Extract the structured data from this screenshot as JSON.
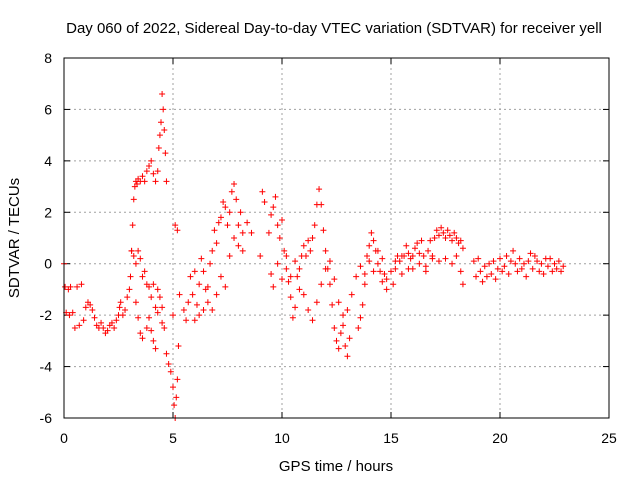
{
  "chart_data": {
    "type": "scatter",
    "title": "Day 060 of 2022, Sidereal Day-to-day VTEC variation (SDTVAR) for receiver yell",
    "xlabel": "GPS time / hours",
    "ylabel": "SDTVAR / TECUs",
    "xlim": [
      0,
      25
    ],
    "ylim": [
      -6,
      8
    ],
    "xticks": [
      0,
      5,
      10,
      15,
      20,
      25
    ],
    "yticks": [
      -6,
      -4,
      -2,
      0,
      2,
      4,
      6,
      8
    ],
    "grid": true,
    "marker": "+",
    "series": [
      {
        "name": "SDTVAR",
        "color": "#ff0000",
        "points": [
          [
            0.0,
            0.0
          ],
          [
            0.05,
            -0.9
          ],
          [
            0.1,
            -1.9
          ],
          [
            0.2,
            -1.0
          ],
          [
            0.25,
            -2.0
          ],
          [
            0.3,
            -0.9
          ],
          [
            0.4,
            -1.9
          ],
          [
            0.5,
            -2.5
          ],
          [
            0.6,
            -0.9
          ],
          [
            0.7,
            -2.4
          ],
          [
            0.8,
            -0.8
          ],
          [
            0.9,
            -2.2
          ],
          [
            1.0,
            -1.7
          ],
          [
            1.1,
            -1.5
          ],
          [
            1.2,
            -1.6
          ],
          [
            1.3,
            -1.8
          ],
          [
            1.4,
            -2.1
          ],
          [
            1.5,
            -2.4
          ],
          [
            1.6,
            -2.5
          ],
          [
            1.7,
            -2.3
          ],
          [
            1.8,
            -2.5
          ],
          [
            1.9,
            -2.7
          ],
          [
            2.0,
            -2.6
          ],
          [
            2.1,
            -2.4
          ],
          [
            2.2,
            -2.3
          ],
          [
            2.3,
            -2.5
          ],
          [
            2.4,
            -2.2
          ],
          [
            2.5,
            -2.0
          ],
          [
            2.55,
            -1.7
          ],
          [
            2.6,
            -1.5
          ],
          [
            2.7,
            -2.0
          ],
          [
            2.8,
            -1.8
          ],
          [
            2.9,
            -1.3
          ],
          [
            3.0,
            -1.0
          ],
          [
            3.05,
            -0.5
          ],
          [
            3.1,
            0.5
          ],
          [
            3.15,
            1.5
          ],
          [
            3.2,
            2.5
          ],
          [
            3.25,
            3.0
          ],
          [
            3.3,
            3.2
          ],
          [
            3.35,
            3.1
          ],
          [
            3.4,
            3.3
          ],
          [
            3.5,
            3.2
          ],
          [
            3.6,
            3.4
          ],
          [
            3.7,
            3.2
          ],
          [
            3.8,
            3.6
          ],
          [
            3.9,
            3.8
          ],
          [
            4.0,
            4.0
          ],
          [
            4.1,
            3.5
          ],
          [
            4.2,
            3.2
          ],
          [
            4.3,
            3.6
          ],
          [
            4.35,
            4.5
          ],
          [
            4.4,
            5.0
          ],
          [
            4.45,
            5.5
          ],
          [
            4.5,
            6.6
          ],
          [
            4.55,
            6.0
          ],
          [
            4.6,
            5.2
          ],
          [
            4.65,
            4.3
          ],
          [
            4.7,
            3.2
          ],
          [
            3.1,
            0.5
          ],
          [
            3.2,
            0.3
          ],
          [
            3.3,
            0.0
          ],
          [
            3.4,
            0.5
          ],
          [
            3.5,
            0.2
          ],
          [
            3.6,
            -0.5
          ],
          [
            3.7,
            -0.3
          ],
          [
            3.8,
            -0.8
          ],
          [
            3.9,
            -0.9
          ],
          [
            4.0,
            -1.3
          ],
          [
            4.1,
            -0.8
          ],
          [
            4.2,
            -1.7
          ],
          [
            4.3,
            -1.9
          ],
          [
            4.4,
            -1.3
          ],
          [
            4.5,
            -2.3
          ],
          [
            4.6,
            -2.5
          ],
          [
            4.7,
            -3.5
          ],
          [
            4.8,
            -3.9
          ],
          [
            4.9,
            -4.2
          ],
          [
            5.0,
            -4.8
          ],
          [
            5.05,
            -5.5
          ],
          [
            5.1,
            -6.0
          ],
          [
            5.15,
            -5.2
          ],
          [
            5.2,
            -4.5
          ],
          [
            5.25,
            -3.2
          ],
          [
            5.3,
            -1.2
          ],
          [
            5.2,
            1.3
          ],
          [
            5.1,
            1.5
          ],
          [
            3.3,
            -1.5
          ],
          [
            3.4,
            -2.1
          ],
          [
            3.5,
            -2.7
          ],
          [
            3.6,
            -2.9
          ],
          [
            3.8,
            -2.5
          ],
          [
            3.9,
            -2.1
          ],
          [
            4.0,
            -2.6
          ],
          [
            4.1,
            -3.0
          ],
          [
            4.2,
            -3.3
          ],
          [
            4.3,
            -1.0
          ],
          [
            4.5,
            -1.7
          ],
          [
            5.0,
            -2.0
          ],
          [
            5.5,
            -1.8
          ],
          [
            5.6,
            -2.2
          ],
          [
            5.7,
            -1.5
          ],
          [
            5.8,
            -0.5
          ],
          [
            5.9,
            -1.2
          ],
          [
            6.0,
            -0.3
          ],
          [
            6.1,
            -1.6
          ],
          [
            6.2,
            -0.8
          ],
          [
            6.3,
            0.2
          ],
          [
            6.4,
            -0.3
          ],
          [
            6.5,
            -1.0
          ],
          [
            6.6,
            -0.9
          ],
          [
            6.7,
            0.0
          ],
          [
            6.8,
            0.5
          ],
          [
            6.9,
            1.3
          ],
          [
            7.0,
            0.8
          ],
          [
            7.1,
            1.6
          ],
          [
            7.2,
            1.8
          ],
          [
            7.3,
            2.4
          ],
          [
            7.4,
            2.2
          ],
          [
            7.5,
            1.5
          ],
          [
            7.6,
            2.0
          ],
          [
            7.7,
            2.8
          ],
          [
            7.8,
            3.1
          ],
          [
            7.9,
            2.5
          ],
          [
            8.0,
            1.5
          ],
          [
            8.1,
            2.0
          ],
          [
            8.2,
            1.2
          ],
          [
            6.0,
            -2.2
          ],
          [
            6.2,
            -2.0
          ],
          [
            6.4,
            -1.8
          ],
          [
            6.6,
            -1.5
          ],
          [
            6.8,
            -1.8
          ],
          [
            7.0,
            -1.2
          ],
          [
            7.2,
            -0.5
          ],
          [
            7.4,
            -0.9
          ],
          [
            7.6,
            0.3
          ],
          [
            7.8,
            1.0
          ],
          [
            8.0,
            0.7
          ],
          [
            8.2,
            0.5
          ],
          [
            8.4,
            1.6
          ],
          [
            8.6,
            1.2
          ],
          [
            9.0,
            0.3
          ],
          [
            9.1,
            2.8
          ],
          [
            9.2,
            2.4
          ],
          [
            9.4,
            1.2
          ],
          [
            9.5,
            1.9
          ],
          [
            9.6,
            2.2
          ],
          [
            9.7,
            2.6
          ],
          [
            9.8,
            1.5
          ],
          [
            9.9,
            1.0
          ],
          [
            10.0,
            1.7
          ],
          [
            10.1,
            0.5
          ],
          [
            10.2,
            -0.2
          ],
          [
            10.3,
            -0.7
          ],
          [
            10.4,
            -1.3
          ],
          [
            10.5,
            -2.1
          ],
          [
            10.6,
            -1.7
          ],
          [
            10.7,
            -0.5
          ],
          [
            10.8,
            -0.2
          ],
          [
            10.9,
            0.3
          ],
          [
            11.0,
            0.7
          ],
          [
            11.1,
            0.3
          ],
          [
            11.2,
            0.9
          ],
          [
            11.3,
            0.5
          ],
          [
            11.4,
            1.0
          ],
          [
            11.5,
            1.5
          ],
          [
            11.6,
            2.3
          ],
          [
            11.7,
            2.9
          ],
          [
            11.8,
            2.3
          ],
          [
            11.9,
            1.3
          ],
          [
            12.0,
            0.5
          ],
          [
            12.1,
            -0.2
          ],
          [
            12.2,
            -0.8
          ],
          [
            12.3,
            -1.6
          ],
          [
            12.4,
            -2.5
          ],
          [
            12.5,
            -3.0
          ],
          [
            12.6,
            -3.3
          ],
          [
            12.7,
            -2.7
          ],
          [
            12.8,
            -2.4
          ],
          [
            12.9,
            -3.2
          ],
          [
            13.0,
            -3.6
          ],
          [
            13.1,
            -2.9
          ],
          [
            9.5,
            -0.4
          ],
          [
            9.6,
            -0.9
          ],
          [
            9.8,
            0.0
          ],
          [
            10.0,
            -0.6
          ],
          [
            10.2,
            0.3
          ],
          [
            10.4,
            -0.5
          ],
          [
            10.6,
            0.1
          ],
          [
            10.8,
            -1.0
          ],
          [
            11.0,
            -1.2
          ],
          [
            11.2,
            -1.8
          ],
          [
            11.4,
            -2.2
          ],
          [
            11.6,
            -1.5
          ],
          [
            11.8,
            -0.8
          ],
          [
            12.0,
            -0.2
          ],
          [
            12.2,
            0.1
          ],
          [
            12.4,
            -0.6
          ],
          [
            12.6,
            -1.5
          ],
          [
            12.8,
            -2.0
          ],
          [
            13.0,
            -1.8
          ],
          [
            13.2,
            -1.2
          ],
          [
            13.4,
            -0.5
          ],
          [
            13.6,
            -0.1
          ],
          [
            13.8,
            -0.4
          ],
          [
            14.0,
            0.1
          ],
          [
            14.2,
            -0.3
          ],
          [
            14.4,
            0.5
          ],
          [
            14.6,
            0.2
          ],
          [
            14.8,
            -0.6
          ],
          [
            13.5,
            -2.5
          ],
          [
            13.6,
            -2.1
          ],
          [
            13.7,
            -1.6
          ],
          [
            13.8,
            -0.8
          ],
          [
            13.9,
            0.3
          ],
          [
            14.0,
            0.7
          ],
          [
            14.1,
            1.2
          ],
          [
            14.2,
            0.9
          ],
          [
            14.3,
            0.5
          ],
          [
            14.4,
            0.0
          ],
          [
            14.5,
            -0.3
          ],
          [
            14.6,
            -0.7
          ],
          [
            14.7,
            -0.4
          ],
          [
            14.8,
            -1.0
          ],
          [
            15.0,
            -0.3
          ],
          [
            15.1,
            -0.8
          ],
          [
            15.2,
            -0.2
          ],
          [
            15.3,
            0.3
          ],
          [
            15.4,
            0.1
          ],
          [
            15.5,
            -0.4
          ],
          [
            15.6,
            0.3
          ],
          [
            15.7,
            0.7
          ],
          [
            15.8,
            0.4
          ],
          [
            15.9,
            0.2
          ],
          [
            16.0,
            -0.2
          ],
          [
            16.1,
            0.6
          ],
          [
            16.2,
            0.8
          ],
          [
            16.3,
            0.4
          ],
          [
            16.4,
            0.9
          ],
          [
            16.5,
            0.3
          ],
          [
            16.6,
            -0.1
          ],
          [
            16.7,
            0.5
          ],
          [
            16.8,
            0.9
          ],
          [
            16.9,
            0.3
          ],
          [
            17.0,
            1.0
          ],
          [
            17.1,
            1.3
          ],
          [
            17.2,
            1.1
          ],
          [
            17.3,
            1.4
          ],
          [
            17.4,
            1.2
          ],
          [
            17.5,
            1.0
          ],
          [
            17.6,
            1.3
          ],
          [
            17.7,
            1.1
          ],
          [
            17.8,
            0.9
          ],
          [
            17.9,
            1.2
          ],
          [
            18.0,
            1.0
          ],
          [
            18.1,
            0.8
          ],
          [
            18.2,
            0.9
          ],
          [
            18.3,
            0.6
          ],
          [
            15.2,
            0.1
          ],
          [
            15.5,
            0.3
          ],
          [
            15.8,
            -0.2
          ],
          [
            16.0,
            0.3
          ],
          [
            16.3,
            0.0
          ],
          [
            16.6,
            -0.3
          ],
          [
            16.9,
            0.2
          ],
          [
            17.2,
            0.1
          ],
          [
            17.5,
            0.2
          ],
          [
            17.8,
            0.0
          ],
          [
            18.0,
            0.3
          ],
          [
            18.2,
            -0.3
          ],
          [
            18.3,
            -0.8
          ],
          [
            18.8,
            0.1
          ],
          [
            18.9,
            -0.5
          ],
          [
            19.0,
            0.2
          ],
          [
            19.1,
            -0.3
          ],
          [
            19.2,
            -0.7
          ],
          [
            19.3,
            -0.1
          ],
          [
            19.4,
            -0.5
          ],
          [
            19.5,
            0.0
          ],
          [
            19.6,
            -0.4
          ],
          [
            19.7,
            0.1
          ],
          [
            19.8,
            -0.6
          ],
          [
            19.9,
            -0.2
          ],
          [
            20.0,
            0.2
          ],
          [
            20.1,
            -0.3
          ],
          [
            20.2,
            -0.1
          ],
          [
            20.3,
            0.3
          ],
          [
            20.4,
            -0.4
          ],
          [
            20.5,
            0.1
          ],
          [
            20.6,
            0.5
          ],
          [
            20.7,
            0.0
          ],
          [
            20.8,
            -0.3
          ],
          [
            20.9,
            0.2
          ],
          [
            21.0,
            -0.2
          ],
          [
            21.1,
            0.0
          ],
          [
            21.2,
            -0.5
          ],
          [
            21.3,
            0.1
          ],
          [
            21.4,
            0.4
          ],
          [
            21.5,
            -0.2
          ],
          [
            21.6,
            0.3
          ],
          [
            21.7,
            0.1
          ],
          [
            21.8,
            -0.3
          ],
          [
            21.9,
            0.0
          ],
          [
            22.0,
            -0.4
          ],
          [
            22.1,
            0.2
          ],
          [
            22.2,
            -0.1
          ],
          [
            22.3,
            0.2
          ],
          [
            22.4,
            -0.3
          ],
          [
            22.5,
            0.0
          ],
          [
            22.6,
            -0.2
          ],
          [
            22.7,
            0.1
          ],
          [
            22.8,
            -0.3
          ],
          [
            22.9,
            -0.1
          ]
        ]
      }
    ]
  }
}
